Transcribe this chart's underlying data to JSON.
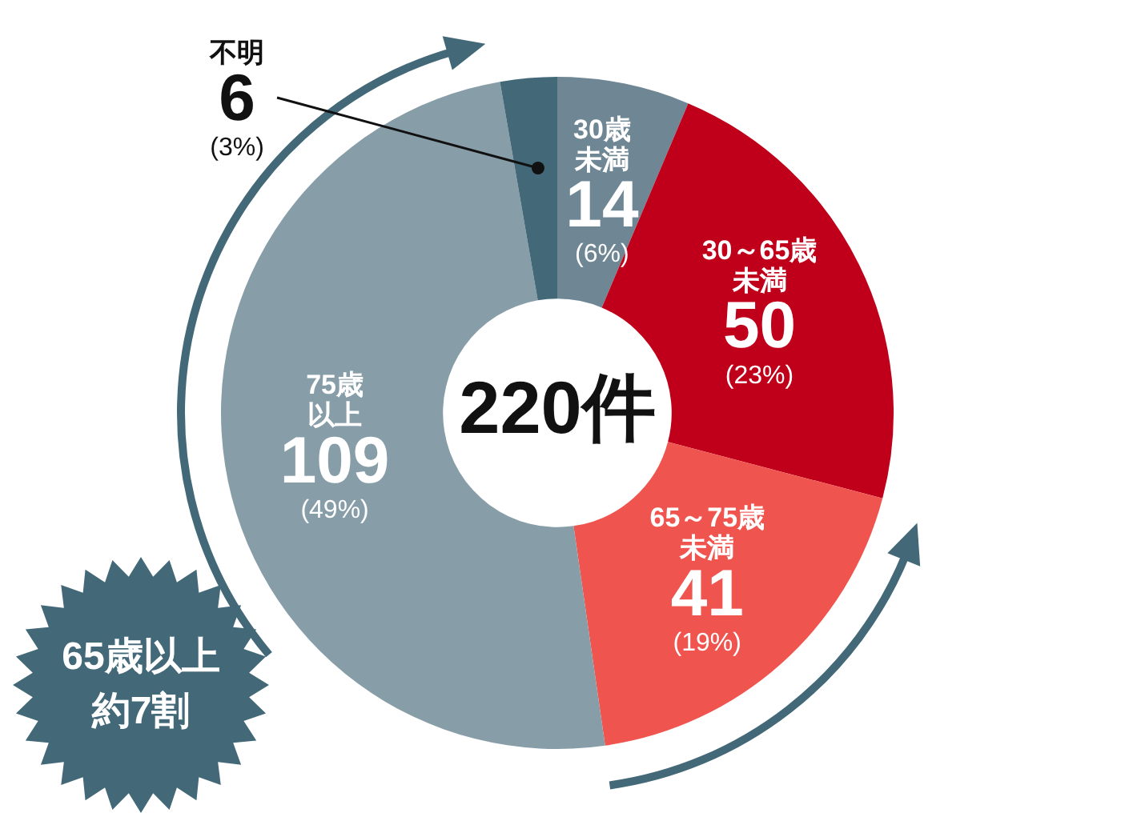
{
  "chart_data": {
    "type": "donut",
    "categories": [
      "30歳未満",
      "30～65歳未満",
      "65～75歳未満",
      "75歳以上",
      "不明"
    ],
    "values": [
      14,
      50,
      41,
      109,
      6
    ],
    "colors": [
      "#6f8794",
      "#c0001a",
      "#f0544f",
      "#879da8",
      "#436878"
    ],
    "value_labels": [
      "14\n(6%)",
      "50\n(23%)",
      "41\n(19%)",
      "109\n(49%)",
      "6\n(3%)"
    ],
    "annotations": [
      "220件",
      "65歳以上約7割"
    ],
    "legend": false
  }
}
